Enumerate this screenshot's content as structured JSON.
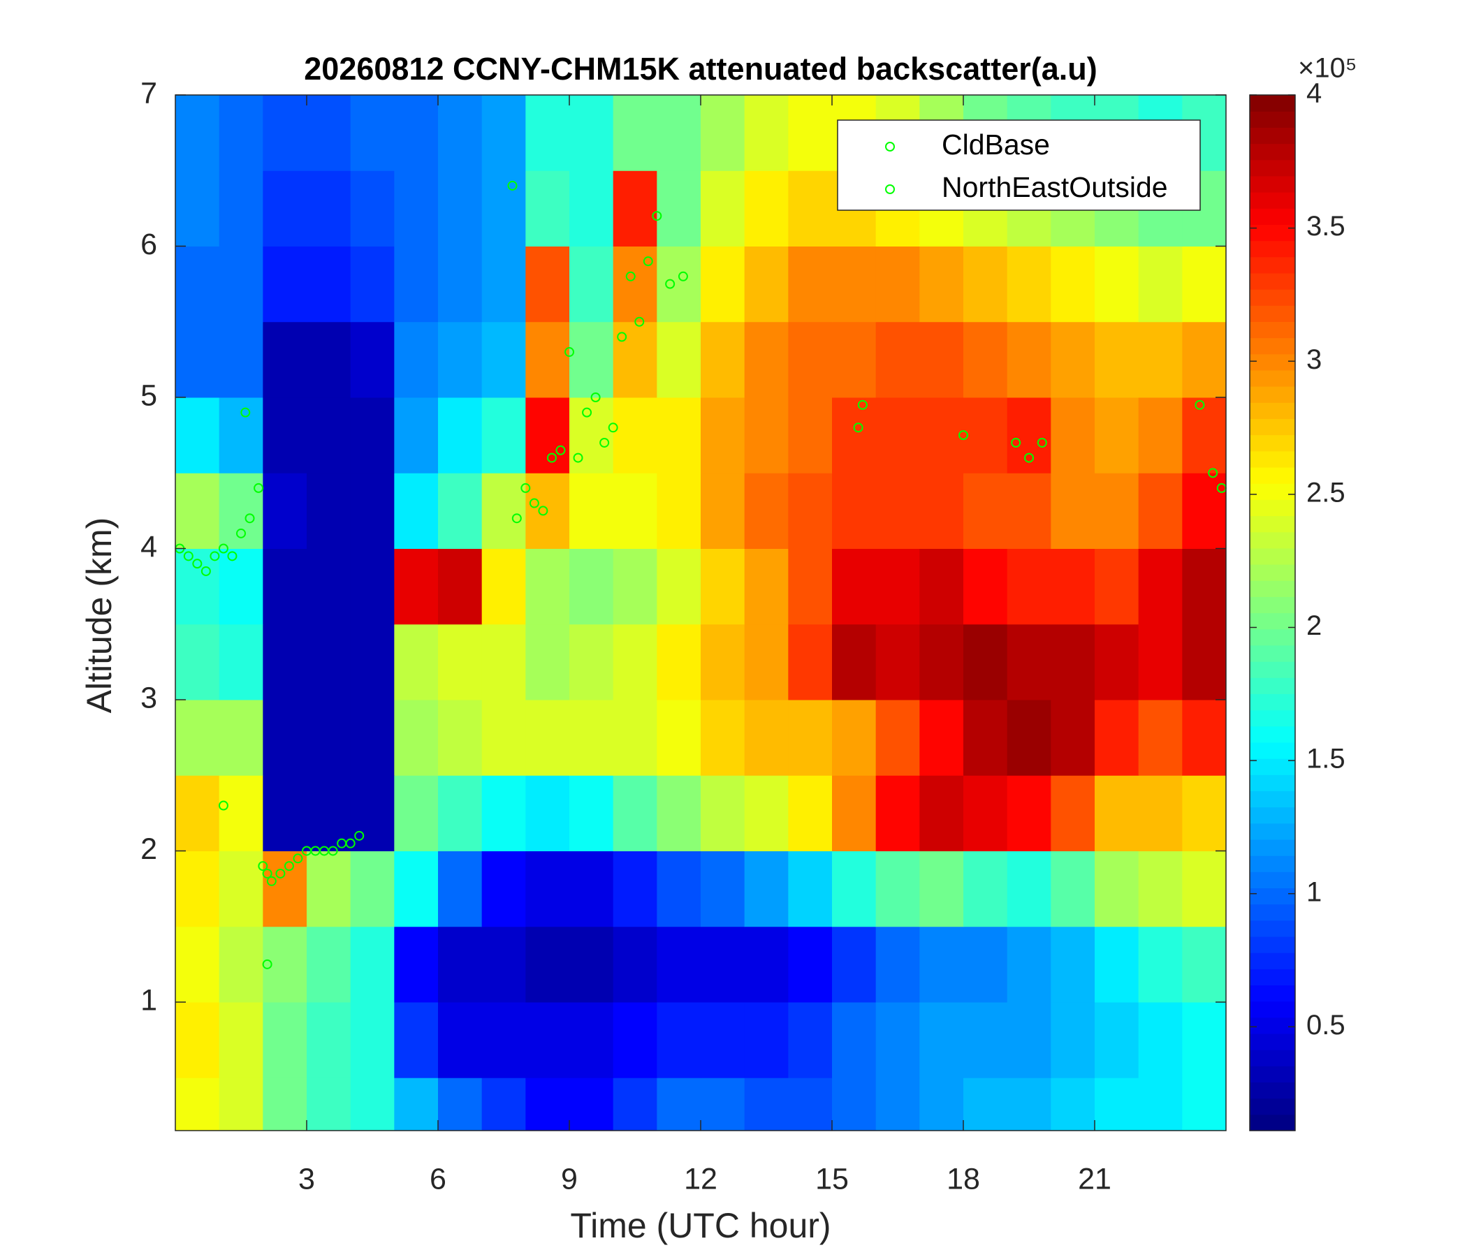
{
  "chart_data": {
    "type": "heatmap",
    "title": "20260812 CCNY-CHM15K attenuated backscatter(a.u)",
    "xlabel": "Time (UTC hour)",
    "ylabel": "Altitude (km)",
    "colormap": "jet",
    "colorbar_multiplier": "×10⁵",
    "xlim": [
      0,
      24
    ],
    "xticks": [
      3,
      6,
      9,
      12,
      15,
      18,
      21
    ],
    "ylim": [
      0.15,
      7
    ],
    "yticks": [
      1,
      2,
      3,
      4,
      5,
      6,
      7
    ],
    "clim": [
      0.11,
      4
    ],
    "cticks": [
      0.5,
      1,
      1.5,
      2,
      2.5,
      3,
      3.5,
      4
    ],
    "x": [
      0.5,
      1.5,
      2.5,
      3.5,
      4.5,
      5.5,
      6.5,
      7.5,
      8.5,
      9.5,
      10.5,
      11.5,
      12.5,
      13.5,
      14.5,
      15.5,
      16.5,
      17.5,
      18.5,
      19.5,
      20.5,
      21.5,
      22.5,
      23.5
    ],
    "y": [
      0.25,
      0.75,
      1.25,
      1.75,
      2.25,
      2.75,
      3.25,
      3.75,
      4.25,
      4.75,
      5.25,
      5.75,
      6.25,
      6.75
    ],
    "z": [
      [
        2.5,
        2.4,
        2.0,
        1.8,
        1.7,
        1.3,
        1.0,
        0.8,
        0.6,
        0.6,
        0.8,
        1.0,
        1.0,
        0.9,
        0.9,
        1.0,
        1.1,
        1.2,
        1.3,
        1.3,
        1.4,
        1.5,
        1.5,
        1.6
      ],
      [
        2.6,
        2.4,
        2.0,
        1.8,
        1.7,
        0.8,
        0.5,
        0.5,
        0.5,
        0.5,
        0.6,
        0.7,
        0.7,
        0.7,
        0.8,
        1.0,
        1.1,
        1.2,
        1.2,
        1.2,
        1.3,
        1.4,
        1.5,
        1.6
      ],
      [
        2.5,
        2.3,
        2.1,
        1.9,
        1.7,
        0.6,
        0.4,
        0.4,
        0.3,
        0.3,
        0.4,
        0.5,
        0.5,
        0.5,
        0.6,
        0.8,
        1.0,
        1.1,
        1.1,
        1.2,
        1.3,
        1.5,
        1.7,
        1.8
      ],
      [
        2.6,
        2.4,
        3.0,
        2.2,
        2.0,
        1.6,
        1.0,
        0.6,
        0.5,
        0.5,
        0.7,
        0.9,
        1.0,
        1.2,
        1.4,
        1.7,
        1.9,
        2.0,
        1.8,
        1.7,
        1.9,
        2.2,
        2.3,
        2.4
      ],
      [
        2.7,
        2.5,
        0.3,
        0.3,
        0.3,
        2.0,
        1.8,
        1.6,
        1.5,
        1.6,
        1.9,
        2.1,
        2.3,
        2.4,
        2.6,
        3.0,
        3.5,
        3.7,
        3.6,
        3.5,
        3.2,
        2.8,
        2.8,
        2.7
      ],
      [
        2.2,
        2.2,
        0.3,
        0.3,
        0.3,
        2.2,
        2.3,
        2.4,
        2.4,
        2.4,
        2.4,
        2.5,
        2.7,
        2.8,
        2.8,
        2.9,
        3.2,
        3.5,
        3.8,
        3.9,
        3.8,
        3.4,
        3.2,
        3.4
      ],
      [
        1.8,
        1.7,
        0.3,
        0.3,
        0.3,
        2.3,
        2.4,
        2.4,
        2.2,
        2.3,
        2.4,
        2.6,
        2.8,
        2.9,
        3.3,
        3.8,
        3.7,
        3.8,
        3.9,
        3.8,
        3.8,
        3.7,
        3.6,
        3.8
      ],
      [
        1.7,
        1.6,
        0.3,
        0.3,
        0.3,
        3.6,
        3.7,
        2.6,
        2.2,
        2.1,
        2.2,
        2.4,
        2.7,
        2.9,
        3.2,
        3.6,
        3.6,
        3.7,
        3.5,
        3.4,
        3.4,
        3.3,
        3.6,
        3.8
      ],
      [
        2.2,
        2.0,
        0.4,
        0.3,
        0.3,
        1.5,
        1.8,
        2.3,
        2.8,
        2.5,
        2.5,
        2.6,
        2.9,
        3.1,
        3.2,
        3.3,
        3.3,
        3.3,
        3.2,
        3.2,
        3.0,
        3.0,
        3.2,
        3.5
      ],
      [
        1.5,
        1.3,
        0.3,
        0.3,
        0.3,
        1.2,
        1.5,
        1.7,
        3.5,
        2.4,
        2.6,
        2.6,
        2.9,
        3.0,
        3.1,
        3.3,
        3.3,
        3.3,
        3.3,
        3.4,
        3.0,
        2.9,
        3.0,
        3.3
      ],
      [
        1.0,
        1.0,
        0.3,
        0.3,
        0.4,
        1.1,
        1.2,
        1.3,
        3.0,
        2.0,
        2.8,
        2.4,
        2.8,
        3.0,
        3.1,
        3.1,
        3.2,
        3.2,
        3.1,
        3.0,
        2.9,
        2.8,
        2.8,
        2.9
      ],
      [
        1.0,
        1.0,
        0.7,
        0.7,
        0.8,
        1.0,
        1.1,
        1.2,
        3.2,
        1.8,
        3.0,
        2.2,
        2.6,
        2.8,
        3.0,
        3.0,
        3.0,
        2.9,
        2.8,
        2.7,
        2.6,
        2.5,
        2.4,
        2.5
      ],
      [
        1.1,
        1.0,
        0.8,
        0.8,
        0.9,
        1.0,
        1.1,
        1.2,
        1.8,
        1.7,
        3.4,
        2.0,
        2.4,
        2.6,
        2.7,
        2.7,
        2.6,
        2.5,
        2.4,
        2.3,
        2.2,
        2.1,
        2.0,
        2.0
      ],
      [
        1.1,
        1.0,
        0.9,
        0.9,
        1.0,
        1.0,
        1.1,
        1.2,
        1.7,
        1.7,
        2.0,
        2.0,
        2.2,
        2.4,
        2.5,
        2.5,
        2.4,
        2.2,
        2.0,
        1.9,
        1.8,
        1.8,
        1.7,
        1.8
      ]
    ],
    "series": [
      {
        "name": "CldBase",
        "color": "#00ff00",
        "x": [
          0.1,
          0.3,
          0.5,
          0.7,
          0.9,
          1.1,
          1.3,
          1.5,
          1.7,
          1.9,
          2.0,
          2.1,
          2.2,
          2.4,
          2.6,
          2.8,
          3.0,
          3.2,
          3.4,
          3.6,
          3.8,
          4.0,
          4.2,
          1.1,
          7.7,
          7.8,
          8.0,
          8.2,
          8.4,
          8.6,
          8.8,
          9.0,
          9.2,
          9.4,
          9.6,
          9.8,
          10.0,
          10.2,
          10.4,
          10.6,
          10.8,
          11.0,
          11.3,
          11.6
        ],
        "values": [
          4.0,
          3.95,
          3.9,
          3.85,
          3.95,
          4.0,
          3.95,
          4.1,
          4.2,
          4.4,
          1.9,
          1.85,
          1.8,
          1.85,
          1.9,
          1.95,
          2.0,
          2.0,
          2.0,
          2.0,
          2.05,
          2.05,
          2.1,
          2.3,
          6.4,
          4.2,
          4.4,
          4.3,
          4.25,
          4.6,
          4.65,
          5.3,
          4.6,
          4.9,
          5.0,
          4.7,
          4.8,
          5.4,
          5.8,
          5.5,
          5.9,
          6.2,
          5.75,
          5.8
        ]
      },
      {
        "name": "NorthEastOutside",
        "color": "#00ff00",
        "x": [
          15.6,
          15.7,
          18.0,
          19.2,
          19.5,
          19.8,
          23.4,
          23.7,
          23.9,
          2.1,
          1.6
        ],
        "values": [
          4.8,
          4.95,
          4.75,
          4.7,
          4.6,
          4.7,
          4.95,
          4.5,
          4.4,
          1.25,
          4.9
        ]
      }
    ]
  }
}
